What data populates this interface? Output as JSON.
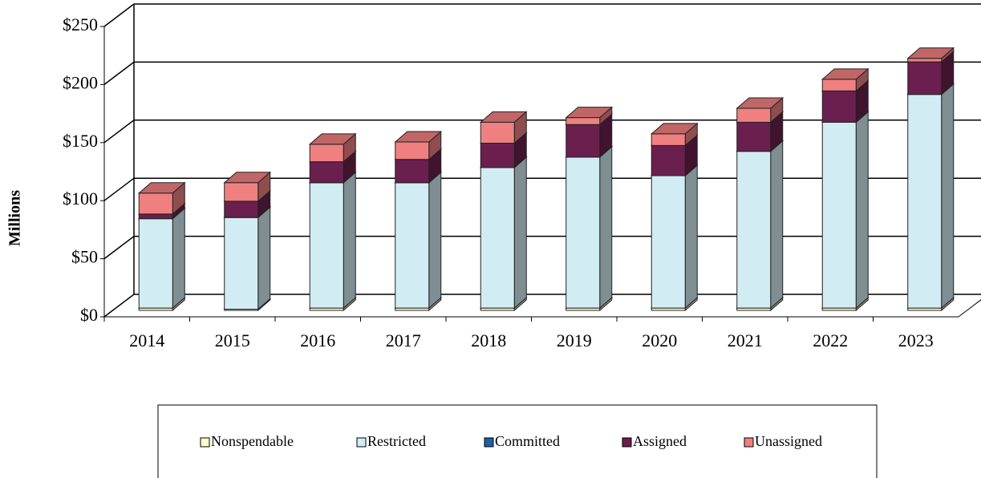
{
  "chart_data": {
    "type": "bar",
    "stacked": true,
    "y_label": "Millions",
    "categories": [
      "2014",
      "2015",
      "2016",
      "2017",
      "2018",
      "2019",
      "2020",
      "2021",
      "2022",
      "2023"
    ],
    "series": [
      {
        "name": "Nonspendable",
        "color": "#ffffcc",
        "values": [
          2,
          1,
          2,
          2,
          2,
          2,
          2,
          2,
          2,
          2
        ]
      },
      {
        "name": "Restricted",
        "color": "#d2ecf3",
        "values": [
          77,
          79,
          108,
          108,
          121,
          130,
          114,
          135,
          160,
          184
        ]
      },
      {
        "name": "Committed",
        "color": "#1f5fa5",
        "values": [
          0,
          0,
          0,
          0,
          0,
          0,
          0,
          0,
          0,
          0
        ]
      },
      {
        "name": "Assigned",
        "color": "#6b1f4f",
        "values": [
          4,
          14,
          18,
          20,
          21,
          28,
          26,
          25,
          27,
          28
        ]
      },
      {
        "name": "Unassigned",
        "color": "#f08080",
        "values": [
          18,
          16,
          15,
          15,
          18,
          6,
          10,
          12,
          10,
          3
        ]
      }
    ],
    "ylim": [
      0,
      250
    ],
    "yticks": [
      {
        "value": 0,
        "label": "$0"
      },
      {
        "value": 50,
        "label": "$50"
      },
      {
        "value": 100,
        "label": "$100"
      },
      {
        "value": 150,
        "label": "$150"
      },
      {
        "value": 200,
        "label": "$200"
      },
      {
        "value": 250,
        "label": "$250"
      }
    ],
    "grid": true,
    "legend": "bottom"
  }
}
